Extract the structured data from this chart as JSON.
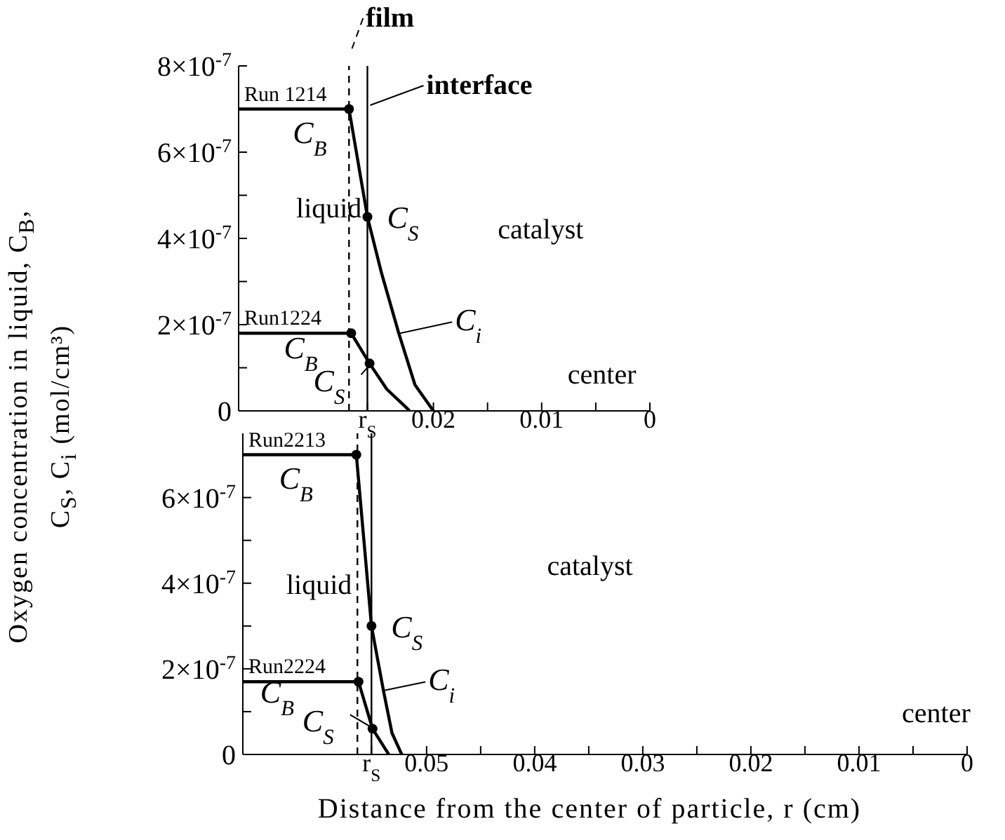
{
  "chart_data": [
    {
      "type": "line",
      "ylabel": "Oxygen concentration in liquid, C$_{B}$, C$_{S}$, C$_{i}$ (mol/cm³)",
      "xlim": [
        0.038,
        0
      ],
      "xticks": [
        {
          "value": 0.0261,
          "label": "r$_{S}$"
        },
        0.02,
        {
          "value": 0.015,
          "label": null
        },
        0.01,
        {
          "value": 0.005,
          "label": null
        },
        0
      ],
      "ylim": [
        0,
        8e-07
      ],
      "yticks": [
        0,
        {
          "value": 1e-07,
          "label": null
        },
        {
          "value": 2e-07,
          "label": "2×10$^{-7}$"
        },
        {
          "value": 3e-07,
          "label": null
        },
        {
          "value": 4e-07,
          "label": "4×10$^{-7}$"
        },
        {
          "value": 5e-07,
          "label": null
        },
        {
          "value": 6e-07,
          "label": "6×10$^{-7}$"
        },
        {
          "value": 7e-07,
          "label": null
        },
        {
          "value": 8e-07,
          "label": "8×10$^{-7}$"
        }
      ],
      "series": [
        {
          "name": "Run 1214",
          "color": "#000000",
          "x": [
            0.038,
            0.0278,
            0.0261,
            0.0248,
            0.0232,
            0.0217,
            0.02
          ],
          "values": [
            7e-07,
            7e-07,
            4.5e-07,
            3.2e-07,
            1.8e-07,
            6e-08,
            0
          ]
        },
        {
          "name": "Run1224",
          "color": "#000000",
          "x": [
            0.038,
            0.0276,
            0.0259,
            0.0243,
            0.0226,
            0.0222
          ],
          "values": [
            1.8e-07,
            1.8e-07,
            1.1e-07,
            5e-08,
            1e-08,
            0
          ]
        },
        {
          "type": "scatter",
          "color": "#000000",
          "marker": "circle",
          "x": [
            0.0278,
            0.0261,
            0.0276,
            0.0259
          ],
          "values": [
            7e-07,
            4.5e-07,
            1.8e-07,
            1.1e-07
          ]
        }
      ],
      "ref_lines": [
        {
          "axis": "x",
          "value": 0.0278,
          "label": "film",
          "line_style": "dashed",
          "color": "#000000"
        },
        {
          "axis": "x",
          "value": 0.0261,
          "label": "interface",
          "line_style": "solid",
          "color": "#000000"
        }
      ],
      "annotations": [
        "liquid",
        "catalyst",
        "center",
        {
          "text": "C$_{B}$",
          "x": 0.0278,
          "y": 7e-07
        },
        {
          "text": "C$_{S}$",
          "x": 0.0261,
          "y": 4.5e-07
        },
        {
          "text": "C$_{i}$",
          "x": 0.0232,
          "y": 1.8e-07
        },
        {
          "text": "C$_{B}$",
          "x": 0.0276,
          "y": 1.8e-07
        },
        {
          "text": "C$_{S}$",
          "x": 0.0259,
          "y": 1.1e-07
        }
      ]
    },
    {
      "type": "line",
      "xlabel": "Distance from the center of particle, r (cm)",
      "xlim": [
        0.067,
        0
      ],
      "xticks": [
        {
          "value": 0.0551,
          "label": "r$_{S}$"
        },
        0.05,
        {
          "value": 0.045,
          "label": null
        },
        0.04,
        {
          "value": 0.035,
          "label": null
        },
        0.03,
        {
          "value": 0.025,
          "label": null
        },
        0.02,
        {
          "value": 0.015,
          "label": null
        },
        0.01,
        {
          "value": 0.005,
          "label": null
        },
        0
      ],
      "ylim": [
        0,
        7.5e-07
      ],
      "yticks": [
        0,
        {
          "value": 1e-07,
          "label": null
        },
        {
          "value": 2e-07,
          "label": "2×10$^{-7}$"
        },
        {
          "value": 3e-07,
          "label": null
        },
        {
          "value": 4e-07,
          "label": "4×10$^{-7}$"
        },
        {
          "value": 5e-07,
          "label": null
        },
        {
          "value": 6e-07,
          "label": "6×10$^{-7}$"
        },
        {
          "value": 7e-07,
          "label": null
        }
      ],
      "series": [
        {
          "name": "Run2213",
          "color": "#000000",
          "x": [
            0.067,
            0.0565,
            0.0551,
            0.054,
            0.0532,
            0.0523
          ],
          "values": [
            7e-07,
            7e-07,
            3e-07,
            1.5e-07,
            5e-08,
            0
          ]
        },
        {
          "name": "Run2224",
          "color": "#000000",
          "x": [
            0.067,
            0.0563,
            0.055,
            0.0535
          ],
          "values": [
            1.7e-07,
            1.7e-07,
            6e-08,
            0
          ]
        },
        {
          "type": "scatter",
          "color": "#000000",
          "marker": "circle",
          "x": [
            0.0565,
            0.0551,
            0.0563,
            0.055
          ],
          "values": [
            7e-07,
            3e-07,
            1.7e-07,
            6e-08
          ]
        }
      ],
      "ref_lines": [
        {
          "axis": "x",
          "value": 0.0564,
          "line_style": "dashed",
          "color": "#000000"
        },
        {
          "axis": "x",
          "value": 0.0551,
          "line_style": "solid",
          "color": "#000000"
        }
      ],
      "annotations": [
        "liquid",
        "catalyst",
        "center",
        {
          "text": "C$_{B}$",
          "x": 0.0565,
          "y": 7e-07
        },
        {
          "text": "C$_{S}$",
          "x": 0.0551,
          "y": 3e-07
        },
        {
          "text": "C$_{i}$",
          "x": 0.054,
          "y": 1.5e-07
        },
        {
          "text": "C$_{B}$",
          "x": 0.0563,
          "y": 1.7e-07
        },
        {
          "text": "C$_{S}$",
          "x": 0.055,
          "y": 6e-08
        }
      ]
    }
  ]
}
